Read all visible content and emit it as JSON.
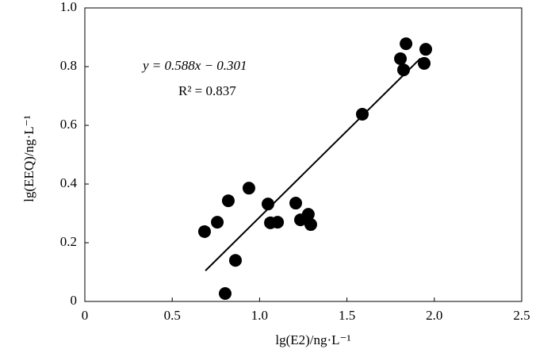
{
  "chart_data": {
    "type": "scatter",
    "x_label": "lg(E2)/ng·L⁻¹",
    "y_label": "lg(EEQ)/ng·L⁻¹",
    "equation": "y = 0.588x − 0.301",
    "r_squared": "R² = 0.837",
    "color": "#000000",
    "x": [
      0.685,
      0.758,
      0.821,
      0.862,
      0.803,
      0.939,
      1.048,
      1.062,
      1.103,
      1.207,
      1.234,
      1.279,
      1.293,
      1.588,
      1.806,
      1.838,
      1.824,
      1.942,
      1.951
    ],
    "y": [
      0.238,
      0.27,
      0.343,
      0.14,
      0.027,
      0.386,
      0.332,
      0.268,
      0.27,
      0.335,
      0.278,
      0.297,
      0.262,
      0.638,
      0.827,
      0.878,
      0.789,
      0.811,
      0.859
    ],
    "fit": {
      "slope": 0.588,
      "intercept": -0.301,
      "xrange": [
        0.69,
        1.92
      ]
    },
    "xlim": [
      0,
      2.5
    ],
    "ylim": [
      0,
      1
    ],
    "xticks": [
      0,
      0.5,
      {
        "value": 1,
        "label": "1.0"
      },
      1.5,
      {
        "value": 2,
        "label": "2.0"
      },
      2.5
    ],
    "yticks": [
      0,
      0.2,
      0.4,
      0.6,
      0.8,
      {
        "value": 1,
        "label": "1.0"
      }
    ]
  }
}
